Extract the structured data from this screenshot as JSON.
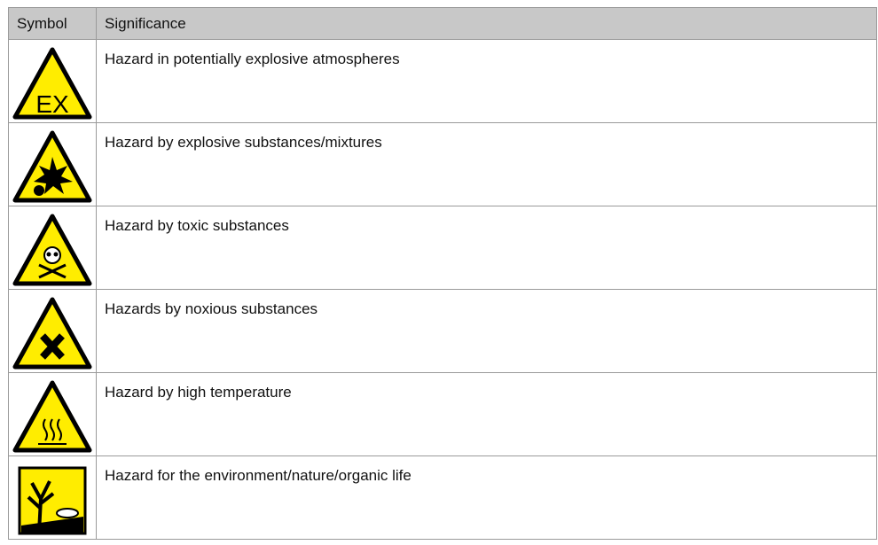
{
  "header": {
    "columns": [
      "Symbol",
      "Significance"
    ]
  },
  "table": {
    "rows": [
      {
        "icon_text": "EX",
        "significance": "Hazard in potentially explosive atmospheres"
      },
      {
        "significance": "Hazard by explosive substances/mixtures"
      },
      {
        "significance": "Hazard by toxic substances"
      },
      {
        "significance": "Hazards by noxious substances"
      },
      {
        "significance": "Hazard by high temperature"
      },
      {
        "significance": "Hazard for the environment/nature/organic life"
      }
    ]
  }
}
